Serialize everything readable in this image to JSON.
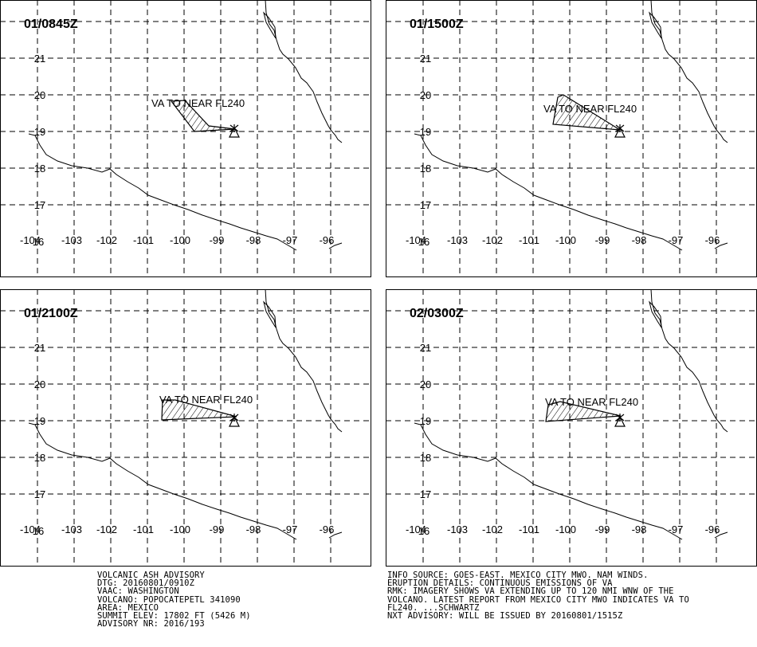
{
  "panels": [
    {
      "time_label": "01/0845Z",
      "va_label": "VA TO NEAR FL240"
    },
    {
      "time_label": "01/1500Z",
      "va_label": "VA TO NEAR FL240"
    },
    {
      "time_label": "01/2100Z",
      "va_label": "VA TO NEAR FL240"
    },
    {
      "time_label": "02/0300Z",
      "va_label": "VA TO NEAR FL240"
    }
  ],
  "axis": {
    "lat_labels": [
      "21",
      "20",
      "19",
      "18",
      "17",
      "16"
    ],
    "lon_labels": [
      "-104",
      "-103",
      "-102",
      "-101",
      "-100",
      "-99",
      "-98",
      "-97",
      "-96"
    ]
  },
  "advisory_left": [
    "VOLCANIC ASH ADVISORY",
    "DTG: 20160801/0910Z",
    "VAAC: WASHINGTON",
    "VOLCANO: POPOCATEPETL 341090",
    "AREA: MEXICO",
    "SUMMIT ELEV: 17802 FT (5426 M)",
    "ADVISORY NR: 2016/193"
  ],
  "advisory_right": [
    "INFO SOURCE: GOES-EAST. MEXICO CITY MWO. NAM WINDS.",
    "ERUPTION DETAILS: CONTINUOUS EMISSIONS OF VA",
    "RMK: IMAGERY SHOWS VA EXTENDING UP TO 120 NMI WNW OF THE",
    "VOLCANO. LATEST REPORT FROM MEXICO CITY MWO INDICATES VA TO",
    "FL240. ...SCHWARTZ",
    "NXT ADVISORY: WILL BE ISSUED BY 20160801/1515Z"
  ]
}
